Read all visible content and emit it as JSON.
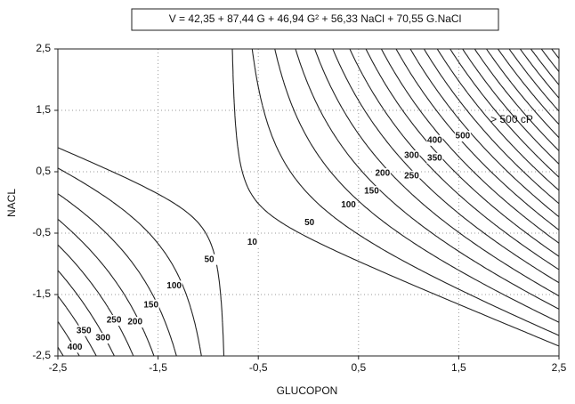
{
  "chart_data": {
    "type": "contour",
    "title": "V = 42,35 + 87,44 G + 46,94 G² + 56,33 NaCl + 70,55 G.NaCl",
    "x_label": "GLUCOPON",
    "y_label": "NACL",
    "annotation": "> 500 cP",
    "xlim": [
      -2.5,
      2.5
    ],
    "ylim": [
      -2.5,
      2.5
    ],
    "xticks": [
      {
        "value": -2.5,
        "label": "-2,5"
      },
      {
        "value": -1.5,
        "label": "-1,5"
      },
      {
        "value": -0.5,
        "label": "-0,5"
      },
      {
        "value": 0.5,
        "label": "0,5"
      },
      {
        "value": 1.5,
        "label": "1,5"
      },
      {
        "value": 2.5,
        "label": "2,5"
      }
    ],
    "yticks": [
      {
        "value": -2.5,
        "label": "-2,5"
      },
      {
        "value": -1.5,
        "label": "-1,5"
      },
      {
        "value": -0.5,
        "label": "-0,5"
      },
      {
        "value": 0.5,
        "label": "0,5"
      },
      {
        "value": 1.5,
        "label": "1,5"
      },
      {
        "value": 2.5,
        "label": "2,5"
      }
    ],
    "grid": true,
    "color": "#222222",
    "levels": [
      10,
      50,
      100,
      150,
      200,
      250,
      300,
      350,
      400,
      450,
      500,
      550,
      600,
      650,
      700,
      750,
      800,
      850,
      900,
      950,
      1000,
      1050,
      1100
    ],
    "contour_labels": [
      {
        "value": 500,
        "x": 1.54,
        "y": 1.08
      },
      {
        "value": 400,
        "x": 1.26,
        "y": 1.01
      },
      {
        "value": 350,
        "x": 1.26,
        "y": 0.72
      },
      {
        "value": 300,
        "x": 1.03,
        "y": 0.76
      },
      {
        "value": 250,
        "x": 1.03,
        "y": 0.43
      },
      {
        "value": 200,
        "x": 0.74,
        "y": 0.47
      },
      {
        "value": 150,
        "x": 0.63,
        "y": 0.18
      },
      {
        "value": 100,
        "x": 0.4,
        "y": -0.04
      },
      {
        "value": 50,
        "x": 0.01,
        "y": -0.33
      },
      {
        "value": 10,
        "x": -0.56,
        "y": -0.65
      },
      {
        "value": 50,
        "x": -0.99,
        "y": -0.93
      },
      {
        "value": 100,
        "x": -1.34,
        "y": -1.36
      },
      {
        "value": 150,
        "x": -1.57,
        "y": -1.67
      },
      {
        "value": 200,
        "x": -1.73,
        "y": -1.95
      },
      {
        "value": 250,
        "x": -1.94,
        "y": -1.92
      },
      {
        "value": 300,
        "x": -2.05,
        "y": -2.21
      },
      {
        "value": 350,
        "x": -2.24,
        "y": -2.09
      },
      {
        "value": 400,
        "x": -2.33,
        "y": -2.36
      }
    ]
  }
}
